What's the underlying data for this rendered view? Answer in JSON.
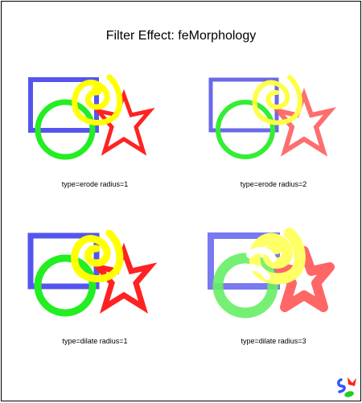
{
  "title": "Filter Effect: feMorphology",
  "panels": [
    {
      "id": "p1",
      "caption": "type=erode radius=1"
    },
    {
      "id": "p2",
      "caption": "type=erode radius=2"
    },
    {
      "id": "p3",
      "caption": "type=dilate radius=1"
    },
    {
      "id": "p4",
      "caption": "type=dilate radius=3"
    }
  ],
  "colors": {
    "blue_rect": "#5555ee",
    "green_circle": "#22ee22",
    "yellow_spiral": "#ffff00",
    "red_star": "#ff2222",
    "star_fill": "#ffffff"
  },
  "logo": {
    "icon": "svg-logo-icon"
  }
}
